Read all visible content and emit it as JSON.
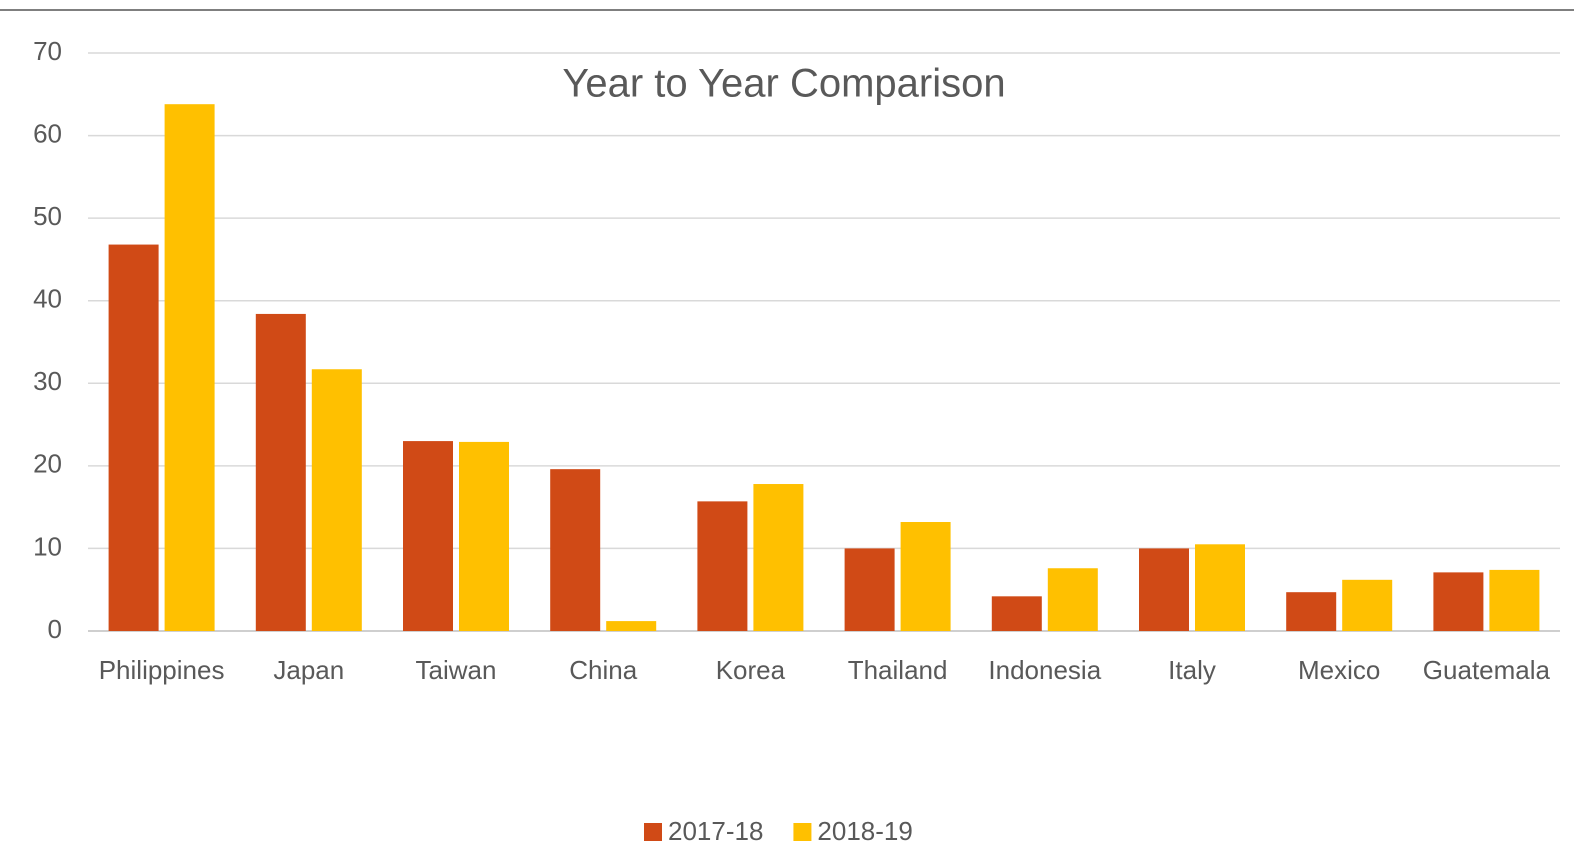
{
  "chart_data": {
    "type": "bar",
    "title": "Year to Year Comparison",
    "categories": [
      "Philippines",
      "Japan",
      "Taiwan",
      "China",
      "Korea",
      "Thailand",
      "Indonesia",
      "Italy",
      "Mexico",
      "Guatemala"
    ],
    "series": [
      {
        "name": "2017-18",
        "color": "#d04a16",
        "values": [
          46.8,
          38.4,
          23.0,
          19.6,
          15.7,
          10.0,
          4.2,
          10.0,
          4.7,
          7.1
        ]
      },
      {
        "name": "2018-19",
        "color": "#ffc000",
        "values": [
          63.8,
          31.7,
          22.9,
          1.2,
          17.8,
          13.2,
          7.6,
          10.5,
          6.2,
          7.4
        ]
      }
    ],
    "ylim": [
      0,
      70
    ],
    "yticks": [
      0,
      10,
      20,
      30,
      40,
      50,
      60,
      70
    ],
    "grid": true,
    "legend": "bottom"
  }
}
